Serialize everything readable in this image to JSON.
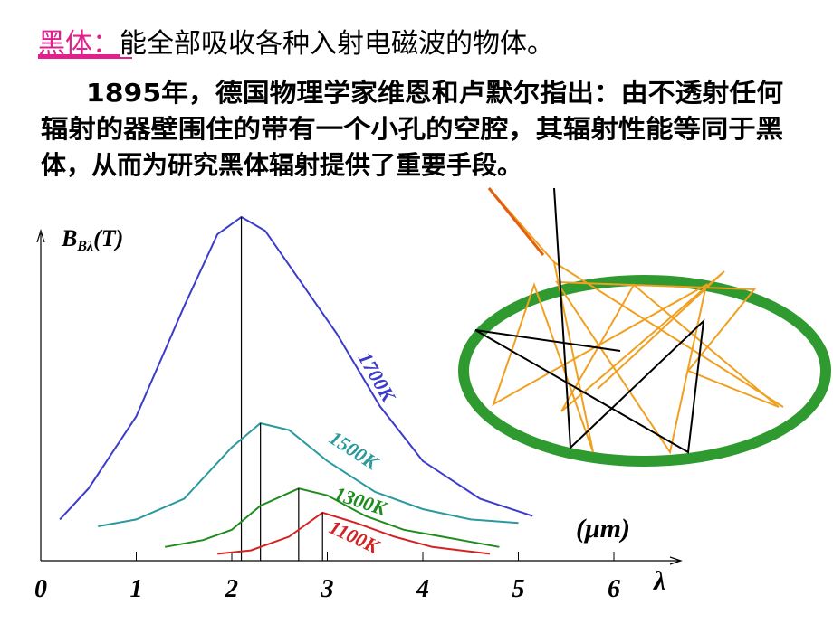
{
  "header": {
    "term": "黑体：",
    "definition": "能全部吸收各种入射电磁波的物体。"
  },
  "paragraph": {
    "year": "1895",
    "lines": [
      "年，德国物理学家维恩和卢默尔指出：由不透射任何",
      "辐射的器壁围住的带有一个小孔的空腔，其辐射性能等同于黑",
      "体，从而为研究黑体辐射提供了重要手段。"
    ]
  },
  "chart_data": {
    "type": "line",
    "ylabel": {
      "base": "B",
      "sub": "Bλ",
      "rest": "(T)"
    },
    "xlabel": "λ",
    "x_unit": "(μm)",
    "xlim": [
      0,
      6.8
    ],
    "ylim": [
      0,
      100
    ],
    "xticks": [
      0,
      1,
      2,
      3,
      4,
      5,
      6
    ],
    "series": [
      {
        "name": "1700K",
        "color": "#3b3bcc",
        "x": [
          0.2,
          0.5,
          1,
          1.5,
          1.85,
          2.1,
          2.35,
          2.7,
          3.1,
          3.55,
          4,
          4.6,
          5.15
        ],
        "values": [
          12,
          21,
          42,
          74,
          95,
          100,
          96,
          82,
          66,
          45,
          29,
          18,
          13
        ]
      },
      {
        "name": "1500K",
        "color": "#2a9a9f",
        "x": [
          0.6,
          1,
          1.5,
          2,
          2.3,
          2.6,
          3,
          3.5,
          4,
          4.5,
          5
        ],
        "values": [
          10,
          12,
          18,
          33,
          40,
          38,
          29,
          20,
          15,
          12,
          11
        ]
      },
      {
        "name": "1300K",
        "color": "#1e8c1e",
        "x": [
          1.3,
          1.7,
          2,
          2.3,
          2.7,
          3,
          3.4,
          3.8,
          4.2,
          4.8
        ],
        "values": [
          4,
          6,
          9,
          16,
          21,
          19,
          13,
          9,
          7,
          4
        ]
      },
      {
        "name": "1100K",
        "color": "#d42222",
        "x": [
          1.85,
          2.2,
          2.6,
          2.95,
          3.3,
          3.7,
          4.1,
          4.7
        ],
        "values": [
          2,
          3,
          7,
          14,
          11,
          7,
          4,
          2
        ]
      }
    ]
  }
}
